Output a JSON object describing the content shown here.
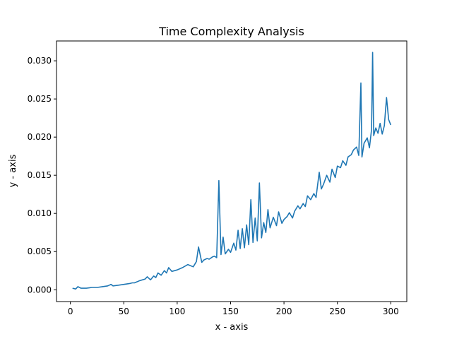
{
  "chart_data": {
    "type": "line",
    "title": "Time Complexity Analysis",
    "xlabel": "x - axis",
    "ylabel": "y - axis",
    "xlim": [
      -13,
      315
    ],
    "ylim": [
      -0.00155,
      0.0326
    ],
    "xticks": [
      0,
      50,
      100,
      150,
      200,
      250,
      300
    ],
    "xtick_labels": [
      "0",
      "50",
      "100",
      "150",
      "200",
      "250",
      "300"
    ],
    "yticks": [
      0,
      0.005,
      0.01,
      0.015,
      0.02,
      0.025,
      0.03
    ],
    "ytick_labels": [
      "0.000",
      "0.005",
      "0.010",
      "0.015",
      "0.020",
      "0.025",
      "0.030"
    ],
    "grid": false,
    "legend": "none",
    "line_color": "#1f77b4",
    "series": [
      {
        "x": [
          2,
          5,
          7,
          10,
          15,
          20,
          25,
          30,
          35,
          38,
          40,
          45,
          50,
          55,
          58,
          60,
          65,
          70,
          72,
          75,
          78,
          80,
          82,
          85,
          88,
          90,
          92,
          95,
          100,
          105,
          110,
          115,
          118,
          120,
          123,
          125,
          128,
          130,
          133,
          135,
          137,
          139,
          141,
          143,
          145,
          148,
          150,
          153,
          155,
          157,
          159,
          161,
          163,
          165,
          167,
          169,
          171,
          173,
          175,
          177,
          179,
          181,
          183,
          185,
          187,
          190,
          193,
          195,
          198,
          200,
          203,
          205,
          208,
          210,
          213,
          215,
          218,
          220,
          222,
          225,
          228,
          230,
          233,
          235,
          237,
          240,
          243,
          245,
          248,
          250,
          253,
          255,
          258,
          260,
          263,
          265,
          268,
          270,
          272,
          273,
          275,
          278,
          280,
          282,
          283,
          284,
          286,
          288,
          290,
          292,
          294,
          296,
          298,
          300
        ],
        "y": [
          0.0002,
          0.0001,
          0.0004,
          0.0002,
          0.0002,
          0.0003,
          0.0003,
          0.0004,
          0.0005,
          0.0007,
          0.0005,
          0.0006,
          0.0007,
          0.0008,
          0.0009,
          0.0009,
          0.0012,
          0.0014,
          0.0017,
          0.0013,
          0.0018,
          0.0016,
          0.0022,
          0.0019,
          0.0025,
          0.0022,
          0.0029,
          0.0024,
          0.0026,
          0.0029,
          0.0033,
          0.003,
          0.0037,
          0.0056,
          0.0036,
          0.0039,
          0.0041,
          0.004,
          0.0043,
          0.0044,
          0.0042,
          0.0143,
          0.0046,
          0.0069,
          0.0047,
          0.0053,
          0.0049,
          0.0061,
          0.0052,
          0.0078,
          0.0054,
          0.008,
          0.0055,
          0.0085,
          0.0059,
          0.0118,
          0.0062,
          0.0094,
          0.0064,
          0.014,
          0.0068,
          0.0088,
          0.0075,
          0.0105,
          0.0081,
          0.0095,
          0.0084,
          0.0102,
          0.0087,
          0.0092,
          0.0096,
          0.0101,
          0.0094,
          0.0103,
          0.011,
          0.0106,
          0.0113,
          0.0109,
          0.0123,
          0.0118,
          0.0126,
          0.0121,
          0.0154,
          0.0132,
          0.0138,
          0.015,
          0.0141,
          0.0158,
          0.0147,
          0.0162,
          0.016,
          0.0169,
          0.0163,
          0.0174,
          0.0177,
          0.0183,
          0.0187,
          0.0176,
          0.0271,
          0.0174,
          0.0192,
          0.0199,
          0.0186,
          0.021,
          0.0311,
          0.0202,
          0.0212,
          0.0205,
          0.0218,
          0.0204,
          0.0215,
          0.0252,
          0.0223,
          0.0216
        ]
      }
    ]
  }
}
